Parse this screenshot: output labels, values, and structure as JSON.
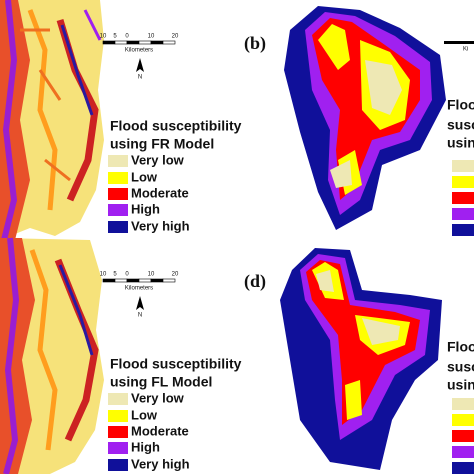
{
  "panels": [
    {
      "scale_bar": {
        "ticks": [
          "10",
          "5",
          "0",
          "10",
          "20"
        ],
        "unit": "Kilometers"
      },
      "north": "N",
      "legend": {
        "title": "Flood susceptibility",
        "subtitle": "using FR Model",
        "items": [
          "Very low",
          "Low",
          "Moderate",
          "High",
          "Very high"
        ],
        "colors": [
          "#eee8b4",
          "#ffff00",
          "#ff0000",
          "#a020f0",
          "#10109a"
        ]
      }
    },
    {
      "label": "(b)",
      "scale_fragment": "Ki",
      "legend_fragment": [
        "Floo",
        "susc",
        "usin"
      ]
    },
    {
      "scale_bar": {
        "ticks": [
          "10",
          "5",
          "0",
          "10",
          "20"
        ],
        "unit": "Kilometers"
      },
      "north": "N",
      "legend": {
        "title": "Flood susceptibility",
        "subtitle": "using FL Model",
        "items": [
          "Very low",
          "Low",
          "Moderate",
          "High",
          "Very high"
        ],
        "colors": [
          "#eee8b4",
          "#ffff00",
          "#ff0000",
          "#a020f0",
          "#10109a"
        ]
      }
    },
    {
      "label": "(d)",
      "legend_fragment": [
        "Floo",
        "susc",
        "usin"
      ]
    }
  ]
}
